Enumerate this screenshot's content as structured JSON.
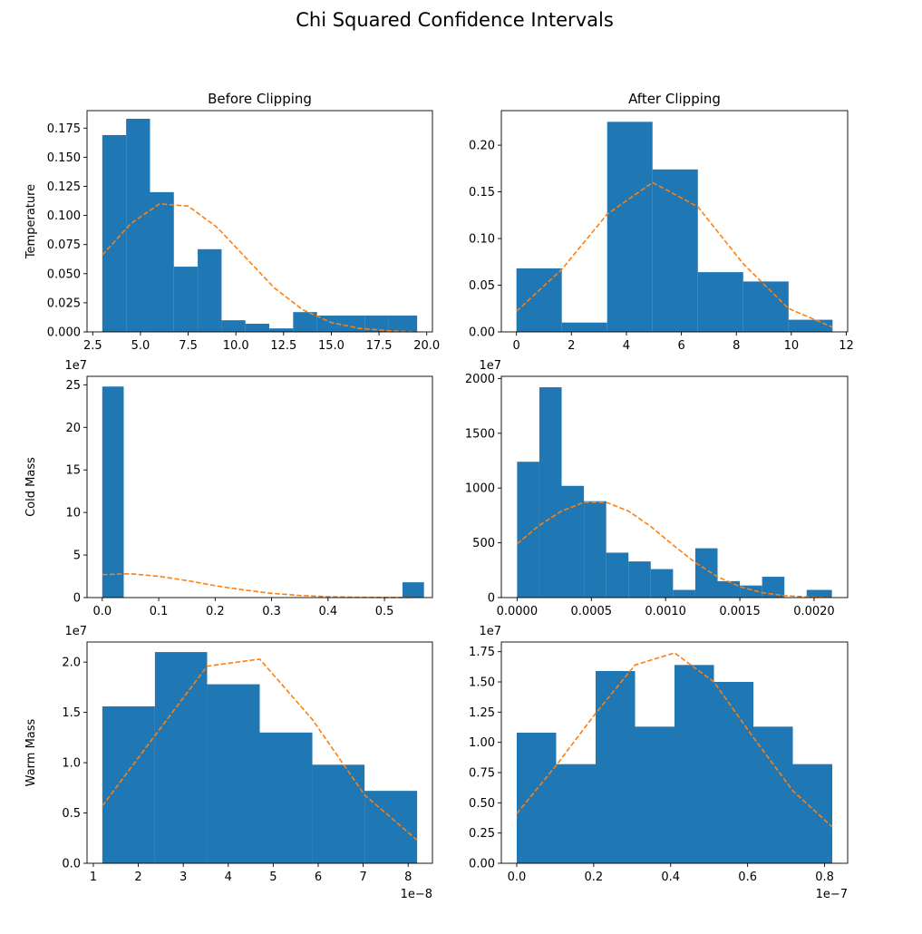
{
  "figure": {
    "title": "Chi Squared Confidence Intervals"
  },
  "colors": {
    "bars": "#1f77b4",
    "fit_line": "#ff7f0e",
    "axes": "#000000",
    "background": "#ffffff"
  },
  "chart_data": [
    {
      "type": "bar",
      "panel": "temperature-before",
      "title": "Before Clipping",
      "ylabel": "Temperature",
      "xlabel": "",
      "xlim": [
        2.2,
        20.3
      ],
      "ylim": [
        0,
        0.19
      ],
      "xticks": [
        2.5,
        5.0,
        7.5,
        10.0,
        12.5,
        15.0,
        17.5,
        20.0
      ],
      "xtick_labels": [
        "2.5",
        "5.0",
        "7.5",
        "10.0",
        "12.5",
        "15.0",
        "17.5",
        "20.0"
      ],
      "yticks": [
        0,
        0.025,
        0.05,
        0.075,
        0.1,
        0.125,
        0.15,
        0.175
      ],
      "ytick_labels": [
        "0.000",
        "0.025",
        "0.050",
        "0.075",
        "0.100",
        "0.125",
        "0.150",
        "0.175"
      ],
      "offset_label": "",
      "bin_edges": [
        3.0,
        4.25,
        5.5,
        6.75,
        8.0,
        9.25,
        10.5,
        11.75,
        13.0,
        14.25,
        15.5,
        16.75,
        18.0,
        19.5
      ],
      "values": [
        0.169,
        0.183,
        0.12,
        0.056,
        0.071,
        0.01,
        0.007,
        0.003,
        0.017,
        0.014,
        0.014,
        0.014,
        0.014
      ],
      "fit_x": [
        3.0,
        4.5,
        6.0,
        7.5,
        9.0,
        10.5,
        12.0,
        13.5,
        15.0,
        16.5,
        18.0,
        19.5
      ],
      "fit_y": [
        0.066,
        0.093,
        0.11,
        0.108,
        0.09,
        0.064,
        0.038,
        0.019,
        0.008,
        0.003,
        0.001,
        0.0
      ]
    },
    {
      "type": "bar",
      "panel": "temperature-after",
      "title": "After Clipping",
      "ylabel": "",
      "xlabel": "",
      "xlim": [
        -0.55,
        12.05
      ],
      "ylim": [
        0,
        0.237
      ],
      "xticks": [
        0,
        2,
        4,
        6,
        8,
        10,
        12
      ],
      "xtick_labels": [
        "0",
        "2",
        "4",
        "6",
        "8",
        "10",
        "12"
      ],
      "yticks": [
        0,
        0.05,
        0.1,
        0.15,
        0.2
      ],
      "ytick_labels": [
        "0.00",
        "0.05",
        "0.10",
        "0.15",
        "0.20"
      ],
      "offset_label": "",
      "bin_edges": [
        0.0,
        1.65,
        3.3,
        4.95,
        6.6,
        8.25,
        9.9,
        11.5
      ],
      "values": [
        0.068,
        0.01,
        0.225,
        0.174,
        0.064,
        0.054,
        0.013
      ],
      "fit_x": [
        0.0,
        1.65,
        3.3,
        4.95,
        6.6,
        8.25,
        9.9,
        11.5
      ],
      "fit_y": [
        0.022,
        0.067,
        0.126,
        0.16,
        0.134,
        0.073,
        0.025,
        0.005
      ]
    },
    {
      "type": "bar",
      "panel": "cold-mass-before",
      "title": "",
      "ylabel": "Cold Mass",
      "xlabel": "",
      "xlim": [
        -0.027,
        0.585
      ],
      "ylim": [
        0,
        26.0
      ],
      "xticks": [
        0.0,
        0.1,
        0.2,
        0.3,
        0.4,
        0.5
      ],
      "xtick_labels": [
        "0.0",
        "0.1",
        "0.2",
        "0.3",
        "0.4",
        "0.5"
      ],
      "yticks": [
        0,
        5,
        10,
        15,
        20,
        25
      ],
      "ytick_labels": [
        "0",
        "5",
        "10",
        "15",
        "20",
        "25"
      ],
      "offset_label": "1e7",
      "bin_edges": [
        0.0,
        0.038,
        0.076,
        0.114,
        0.152,
        0.19,
        0.228,
        0.266,
        0.304,
        0.342,
        0.38,
        0.418,
        0.456,
        0.494,
        0.532,
        0.57
      ],
      "values": [
        24.8,
        0,
        0,
        0,
        0,
        0,
        0,
        0,
        0,
        0,
        0,
        0,
        0,
        0,
        1.8
      ],
      "fit_x": [
        0.0,
        0.05,
        0.1,
        0.15,
        0.2,
        0.25,
        0.3,
        0.35,
        0.4,
        0.45,
        0.5,
        0.55
      ],
      "fit_y": [
        2.7,
        2.8,
        2.5,
        2.0,
        1.4,
        0.9,
        0.5,
        0.25,
        0.1,
        0.04,
        0.01,
        0.0
      ]
    },
    {
      "type": "bar",
      "panel": "cold-mass-after",
      "title": "",
      "ylabel": "",
      "xlabel": "",
      "xlim": [
        -0.000106,
        0.002226
      ],
      "ylim": [
        0,
        2020
      ],
      "xticks": [
        0.0,
        0.0005,
        0.001,
        0.0015,
        0.002
      ],
      "xtick_labels": [
        "0.0000",
        "0.0005",
        "0.0010",
        "0.0015",
        "0.0020"
      ],
      "yticks": [
        0,
        500,
        1000,
        1500,
        2000
      ],
      "ytick_labels": [
        "0",
        "500",
        "1000",
        "1500",
        "2000"
      ],
      "offset_label": "1e7",
      "bin_edges": [
        0.0,
        0.00015,
        0.0003,
        0.00045,
        0.0006,
        0.00075,
        0.0009,
        0.00105,
        0.0012,
        0.00135,
        0.0015,
        0.00165,
        0.0018,
        0.00195,
        0.00212
      ],
      "values": [
        1240,
        1920,
        1020,
        880,
        410,
        330,
        260,
        70,
        450,
        150,
        110,
        190,
        0,
        70
      ],
      "fit_x": [
        0.0,
        0.00015,
        0.0003,
        0.00045,
        0.0006,
        0.00075,
        0.0009,
        0.00105,
        0.0012,
        0.00135,
        0.0015,
        0.00165,
        0.0018,
        0.00195,
        0.0021
      ],
      "fit_y": [
        490,
        660,
        790,
        870,
        870,
        790,
        650,
        480,
        320,
        190,
        100,
        45,
        18,
        6,
        2
      ]
    },
    {
      "type": "bar",
      "panel": "warm-mass-before",
      "title": "",
      "ylabel": "Warm Mass",
      "xlabel": "",
      "xlim": [
        0.86,
        8.54
      ],
      "ylim": [
        0,
        2.2
      ],
      "xticks": [
        1,
        2,
        3,
        4,
        5,
        6,
        7,
        8
      ],
      "xtick_labels": [
        "1",
        "2",
        "3",
        "4",
        "5",
        "6",
        "7",
        "8"
      ],
      "yticks": [
        0,
        0.5,
        1.0,
        1.5,
        2.0
      ],
      "ytick_labels": [
        "0.0",
        "0.5",
        "1.0",
        "1.5",
        "2.0"
      ],
      "offset_label": "1e7",
      "x_offset_label": "1e−8",
      "bin_edges": [
        1.2,
        2.37,
        3.53,
        4.7,
        5.87,
        7.03,
        8.2
      ],
      "values": [
        1.56,
        2.1,
        1.78,
        1.3,
        0.98,
        0.72
      ],
      "fit_x": [
        1.2,
        2.37,
        3.53,
        4.7,
        5.87,
        7.03,
        8.2
      ],
      "fit_y": [
        0.57,
        1.27,
        1.96,
        2.03,
        1.43,
        0.68,
        0.23
      ]
    },
    {
      "type": "bar",
      "panel": "warm-mass-after",
      "title": "",
      "ylabel": "",
      "xlabel": "",
      "xlim": [
        -0.04,
        0.86
      ],
      "ylim": [
        0,
        1.83
      ],
      "xticks": [
        0.0,
        0.2,
        0.4,
        0.6,
        0.8
      ],
      "xtick_labels": [
        "0.0",
        "0.2",
        "0.4",
        "0.6",
        "0.8"
      ],
      "yticks": [
        0,
        0.25,
        0.5,
        0.75,
        1.0,
        1.25,
        1.5,
        1.75
      ],
      "ytick_labels": [
        "0.00",
        "0.25",
        "0.50",
        "0.75",
        "1.00",
        "1.25",
        "1.50",
        "1.75"
      ],
      "offset_label": "1e7",
      "x_offset_label": "1e−7",
      "bin_edges": [
        0.0,
        0.1025,
        0.205,
        0.3075,
        0.41,
        0.5125,
        0.615,
        0.7175,
        0.82
      ],
      "values": [
        1.08,
        0.82,
        1.59,
        1.13,
        1.64,
        1.5,
        1.13,
        0.82
      ],
      "fit_x": [
        0.0,
        0.1025,
        0.205,
        0.3075,
        0.41,
        0.5125,
        0.615,
        0.7175,
        0.82
      ],
      "fit_y": [
        0.41,
        0.81,
        1.24,
        1.64,
        1.74,
        1.5,
        1.04,
        0.6,
        0.3
      ]
    }
  ]
}
